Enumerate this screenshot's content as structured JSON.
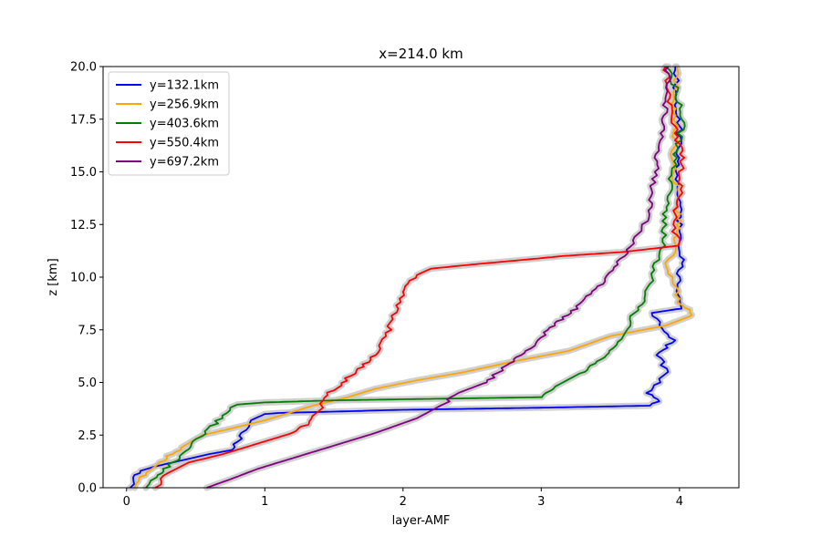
{
  "chart_data": {
    "type": "line",
    "title": "x=214.0 km",
    "xlabel": "layer-AMF",
    "ylabel": "z [km]",
    "xlim": [
      -0.17,
      4.43
    ],
    "ylim": [
      0,
      20
    ],
    "xticks": [
      0,
      1,
      2,
      3,
      4
    ],
    "xtick_labels": [
      "0",
      "1",
      "2",
      "3",
      "4"
    ],
    "yticks": [
      0.0,
      2.5,
      5.0,
      7.5,
      10.0,
      12.5,
      15.0,
      17.5,
      20.0
    ],
    "ytick_labels": [
      "0.0",
      "2.5",
      "5.0",
      "7.5",
      "10.0",
      "12.5",
      "15.0",
      "17.5",
      "20.0"
    ],
    "grid": false,
    "legend_position": "top-left",
    "band_color": "#c8c8c8",
    "series": [
      {
        "name": "y=132.1km",
        "color": "#0000ff",
        "x": [
          0.04,
          0.05,
          0.1,
          0.2,
          0.4,
          0.6,
          0.77,
          0.8,
          0.84,
          0.9,
          1.0,
          1.1,
          2.0,
          3.0,
          3.8,
          3.85,
          3.78,
          3.85,
          3.9,
          3.85,
          3.95,
          3.8,
          4.0,
          3.98,
          4.02,
          4.0,
          3.98,
          4.0,
          3.98,
          3.97
        ],
        "y": [
          0.0,
          0.5,
          0.8,
          1.0,
          1.3,
          1.6,
          1.8,
          2.2,
          2.6,
          3.2,
          3.5,
          3.55,
          3.7,
          3.8,
          3.9,
          4.2,
          4.5,
          5.0,
          5.5,
          6.3,
          7.0,
          8.3,
          8.5,
          9.5,
          11.0,
          12.5,
          15.0,
          17.0,
          18.5,
          20.0
        ]
      },
      {
        "name": "y=256.9km",
        "color": "#ffa500",
        "x": [
          0.08,
          0.1,
          0.2,
          0.3,
          0.42,
          0.55,
          0.75,
          1.0,
          1.35,
          1.6,
          1.8,
          2.1,
          2.45,
          2.8,
          3.2,
          3.5,
          3.9,
          4.1,
          4.0,
          3.97,
          3.9,
          3.95,
          4.0,
          3.98,
          3.95,
          3.97,
          3.95,
          3.98
        ],
        "y": [
          0.0,
          0.5,
          1.0,
          1.5,
          2.0,
          2.5,
          2.8,
          3.2,
          3.9,
          4.3,
          4.7,
          5.1,
          5.5,
          6.0,
          6.5,
          7.2,
          7.7,
          8.2,
          8.8,
          9.5,
          10.5,
          11.2,
          12.5,
          14.0,
          15.5,
          17.0,
          18.5,
          20.0
        ]
      },
      {
        "name": "y=403.6km",
        "color": "#008000",
        "x": [
          0.15,
          0.2,
          0.3,
          0.42,
          0.5,
          0.6,
          0.68,
          0.75,
          0.8,
          1.0,
          1.5,
          3.0,
          3.1,
          3.3,
          3.5,
          3.58,
          3.65,
          3.75,
          3.82,
          3.88,
          3.9,
          3.95,
          4.03,
          3.97,
          3.9
        ],
        "y": [
          0.0,
          0.5,
          1.0,
          1.6,
          2.2,
          2.8,
          3.3,
          3.8,
          3.95,
          4.05,
          4.15,
          4.3,
          4.8,
          5.5,
          6.5,
          7.2,
          8.0,
          9.0,
          10.5,
          11.5,
          13.0,
          15.0,
          17.5,
          19.0,
          20.0
        ]
      },
      {
        "name": "y=550.4km",
        "color": "#ff0000",
        "x": [
          0.22,
          0.25,
          0.3,
          0.45,
          0.7,
          1.0,
          1.2,
          1.3,
          1.33,
          1.4,
          1.42,
          1.45,
          1.6,
          1.8,
          1.9,
          1.95,
          2.0,
          2.1,
          2.2,
          2.5,
          3.0,
          3.15,
          3.6,
          4.0,
          3.95,
          4.0,
          4.02,
          3.95,
          3.9
        ],
        "y": [
          0.0,
          0.3,
          0.7,
          1.2,
          1.6,
          2.2,
          2.6,
          3.0,
          3.3,
          3.6,
          4.0,
          4.4,
          5.2,
          6.3,
          7.5,
          8.5,
          9.3,
          10.1,
          10.4,
          10.6,
          10.9,
          11.0,
          11.2,
          11.5,
          12.5,
          14.0,
          15.5,
          17.5,
          20.0
        ]
      },
      {
        "name": "y=697.2km",
        "color": "#800080",
        "x": [
          0.58,
          0.75,
          0.95,
          1.2,
          1.5,
          1.8,
          2.1,
          2.3,
          2.4,
          2.6,
          2.75,
          2.9,
          3.05,
          3.25,
          3.45,
          3.6,
          3.75,
          3.8,
          3.85,
          3.9,
          3.92
        ],
        "y": [
          0.0,
          0.4,
          0.9,
          1.4,
          2.0,
          2.6,
          3.3,
          4.0,
          4.5,
          5.0,
          5.8,
          6.5,
          7.5,
          8.5,
          9.8,
          11.0,
          12.5,
          14.0,
          16.0,
          18.0,
          20.0
        ]
      }
    ]
  }
}
